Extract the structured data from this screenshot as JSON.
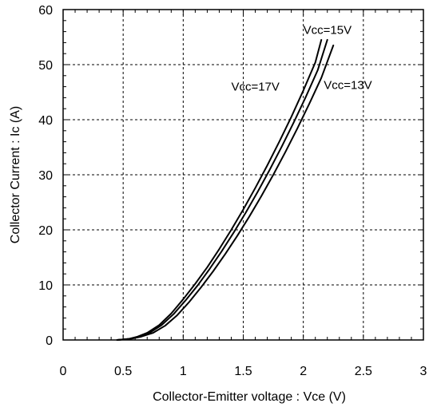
{
  "chart_data": {
    "type": "line",
    "title": "",
    "xlabel": "Collector-Emitter voltage : Vce  (V)",
    "ylabel": "Collector Current : Ic  (A)",
    "xlim": [
      0,
      3
    ],
    "ylim": [
      0,
      60
    ],
    "x_ticks": [
      0,
      0.5,
      1,
      1.5,
      2,
      2.5,
      3
    ],
    "x_tick_labels": [
      "0",
      "0.5",
      "1",
      "1.5",
      "2",
      "2.5",
      "3"
    ],
    "y_ticks": [
      0,
      10,
      20,
      30,
      40,
      50,
      60
    ],
    "y_tick_labels": [
      "0",
      "10",
      "20",
      "30",
      "40",
      "50",
      "60"
    ],
    "grid": true,
    "grid_style": "dashed",
    "legend": "none",
    "line_color": "#000000",
    "series": [
      {
        "name": "Vcc=17V",
        "x": [
          0.45,
          0.55,
          0.62,
          0.7,
          0.8,
          0.9,
          1.0,
          1.1,
          1.2,
          1.3,
          1.4,
          1.5,
          1.6,
          1.7,
          1.8,
          1.9,
          2.0,
          2.1,
          2.15
        ],
        "y": [
          0,
          0.2,
          0.6,
          1.3,
          2.7,
          4.8,
          7.4,
          10.2,
          13.2,
          16.5,
          20.0,
          23.7,
          27.6,
          31.7,
          36.0,
          40.5,
          45.3,
          50.4,
          54.5
        ]
      },
      {
        "name": "Vcc=15V",
        "x": [
          0.45,
          0.55,
          0.63,
          0.72,
          0.82,
          0.92,
          1.02,
          1.12,
          1.22,
          1.32,
          1.42,
          1.52,
          1.62,
          1.72,
          1.82,
          1.92,
          2.02,
          2.12,
          2.2
        ],
        "y": [
          0,
          0.2,
          0.6,
          1.3,
          2.7,
          4.7,
          7.2,
          9.9,
          12.9,
          16.1,
          19.5,
          23.1,
          26.9,
          30.9,
          35.1,
          39.5,
          44.1,
          49.0,
          54.5
        ]
      },
      {
        "name": "Vcc=13V",
        "x": [
          0.45,
          0.56,
          0.65,
          0.75,
          0.85,
          0.95,
          1.05,
          1.15,
          1.25,
          1.35,
          1.45,
          1.55,
          1.65,
          1.75,
          1.85,
          1.95,
          2.05,
          2.15,
          2.25
        ],
        "y": [
          0,
          0.2,
          0.6,
          1.3,
          2.6,
          4.5,
          6.9,
          9.6,
          12.5,
          15.6,
          18.9,
          22.4,
          26.1,
          30.0,
          34.1,
          38.4,
          42.9,
          47.6,
          53.5
        ]
      }
    ],
    "annotations": [
      {
        "text": "Vcc=15V",
        "x": 2.0,
        "y": 55.6
      },
      {
        "text": "Vcc=17V",
        "x": 1.4,
        "y": 45.3
      },
      {
        "text": "Vcc=13V",
        "x": 2.17,
        "y": 45.6
      }
    ]
  }
}
